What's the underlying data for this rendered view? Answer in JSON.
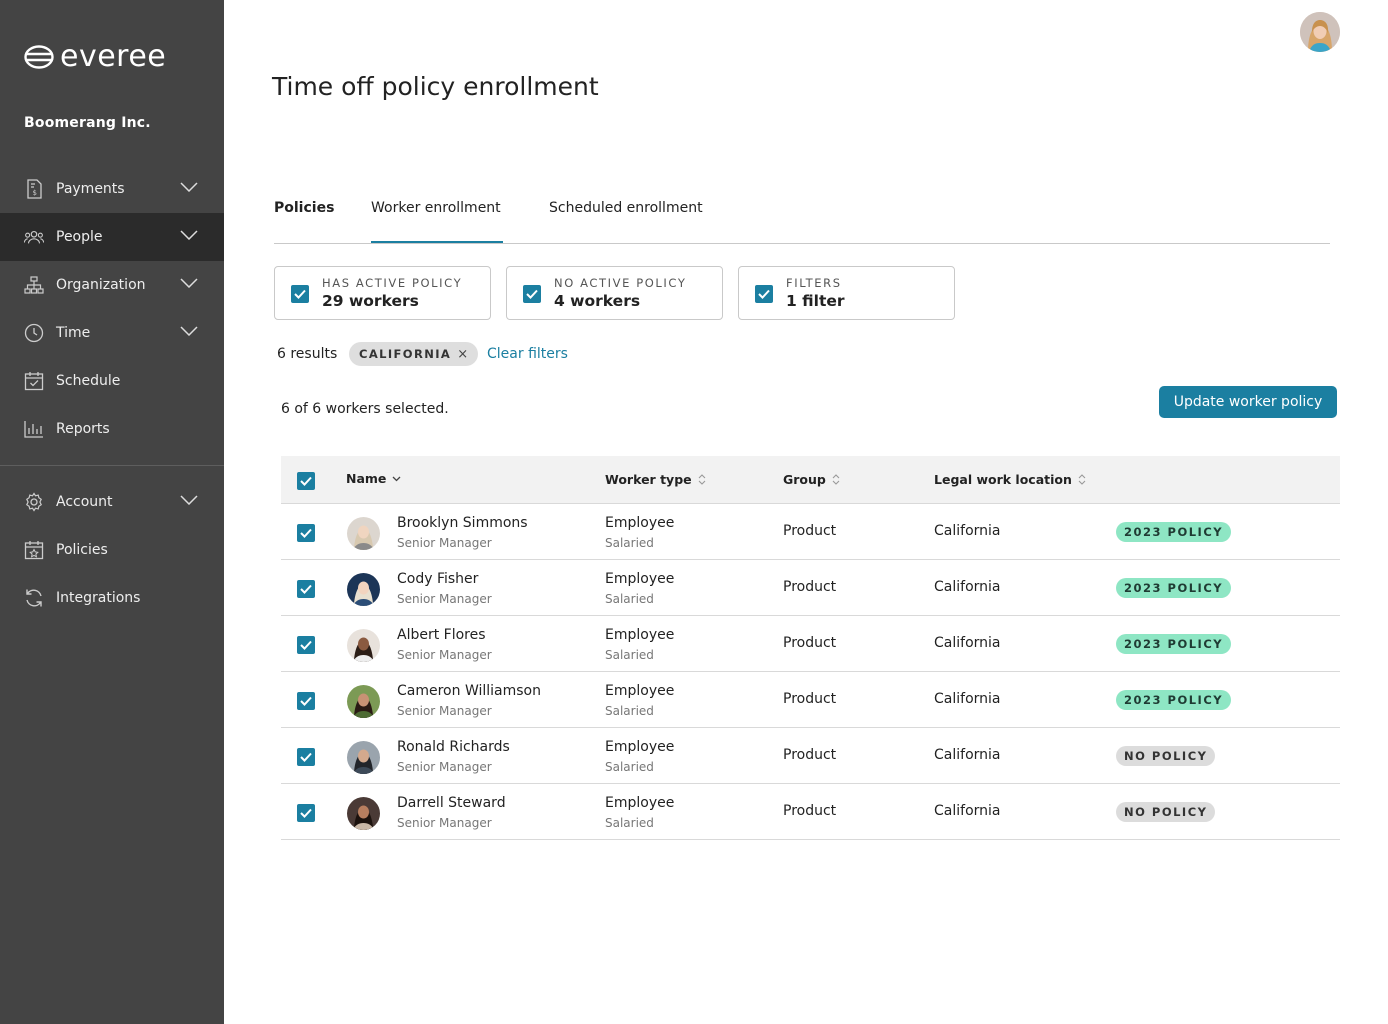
{
  "app": {
    "brand": "everee",
    "company": "Boomerang Inc."
  },
  "sidebar": {
    "items": [
      {
        "label": "Payments",
        "icon": "payments-icon",
        "expandable": true
      },
      {
        "label": "People",
        "icon": "people-icon",
        "expandable": true,
        "active": true
      },
      {
        "label": "Organization",
        "icon": "organization-icon",
        "expandable": true
      },
      {
        "label": "Time",
        "icon": "clock-icon",
        "expandable": true
      },
      {
        "label": "Schedule",
        "icon": "calendar-check-icon",
        "expandable": false
      },
      {
        "label": "Reports",
        "icon": "bar-chart-icon",
        "expandable": false
      }
    ],
    "secondary_items": [
      {
        "label": "Account",
        "icon": "gear-icon",
        "expandable": true
      },
      {
        "label": "Policies",
        "icon": "calendar-policy-icon",
        "expandable": false
      },
      {
        "label": "Integrations",
        "icon": "sync-icon",
        "expandable": false
      }
    ]
  },
  "page": {
    "title": "Time off policy enrollment"
  },
  "tabs": [
    {
      "label": "Policies",
      "active": false
    },
    {
      "label": "Worker enrollment",
      "active": true
    },
    {
      "label": "Scheduled enrollment",
      "active": false
    }
  ],
  "filter_cards": [
    {
      "label": "HAS ACTIVE POLICY",
      "value": "29 workers",
      "checked": true
    },
    {
      "label": "NO ACTIVE POLICY",
      "value": "4 workers",
      "checked": true
    },
    {
      "label": "FILTERS",
      "value": "1 filter",
      "checked": true
    }
  ],
  "results": {
    "count_text": "6 results",
    "chip": "CALIFORNIA",
    "chip_remove": "×",
    "clear_label": "Clear filters"
  },
  "selection": {
    "text": "6 of 6 workers selected.",
    "action_label": "Update worker policy"
  },
  "table": {
    "columns": {
      "name": "Name",
      "worker_type": "Worker type",
      "group": "Group",
      "location": "Legal work location"
    },
    "rows": [
      {
        "name": "Brooklyn Simmons",
        "title": "Senior Manager",
        "type": "Employee",
        "sub": "Salaried",
        "group": "Product",
        "location": "California",
        "policy": "2023 POLICY",
        "has_policy": true
      },
      {
        "name": "Cody Fisher",
        "title": "Senior Manager",
        "type": "Employee",
        "sub": "Salaried",
        "group": "Product",
        "location": "California",
        "policy": "2023 POLICY",
        "has_policy": true
      },
      {
        "name": "Albert Flores",
        "title": "Senior Manager",
        "type": "Employee",
        "sub": "Salaried",
        "group": "Product",
        "location": "California",
        "policy": "2023 POLICY",
        "has_policy": true
      },
      {
        "name": "Cameron Williamson",
        "title": "Senior Manager",
        "type": "Employee",
        "sub": "Salaried",
        "group": "Product",
        "location": "California",
        "policy": "2023 POLICY",
        "has_policy": true
      },
      {
        "name": "Ronald Richards",
        "title": "Senior Manager",
        "type": "Employee",
        "sub": "Salaried",
        "group": "Product",
        "location": "California",
        "policy": "NO POLICY",
        "has_policy": false
      },
      {
        "name": "Darrell Steward",
        "title": "Senior Manager",
        "type": "Employee",
        "sub": "Salaried",
        "group": "Product",
        "location": "California",
        "policy": "NO POLICY",
        "has_policy": false
      }
    ]
  },
  "colors": {
    "sidebar_bg": "#444444",
    "sidebar_active": "#2b2b2b",
    "accent": "#1b7fa1",
    "policy_active": "#8ee6c4",
    "policy_none": "#dcdcdc"
  }
}
